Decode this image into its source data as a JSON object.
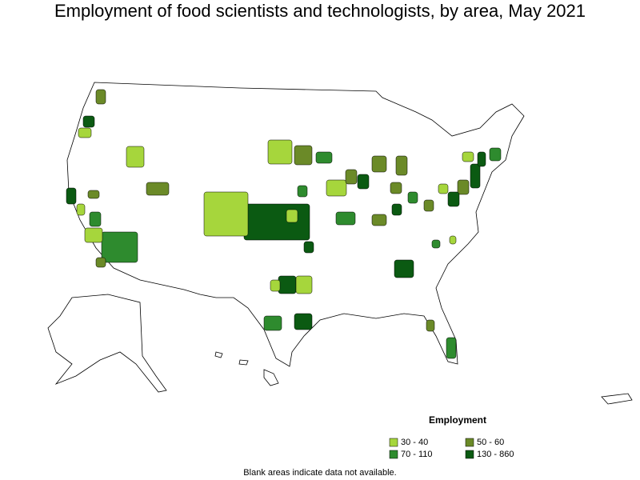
{
  "title": "Employment of food scientists and technologists, by area, May 2021",
  "legend": {
    "title": "Employment",
    "items": [
      {
        "label": "30 - 40",
        "color": "#a6d63c"
      },
      {
        "label": "50 - 60",
        "color": "#6b8a28"
      },
      {
        "label": "70 - 110",
        "color": "#2e8b2e"
      },
      {
        "label": "130 - 860",
        "color": "#0b5a12"
      }
    ]
  },
  "note": "Blank areas indicate data not available."
}
